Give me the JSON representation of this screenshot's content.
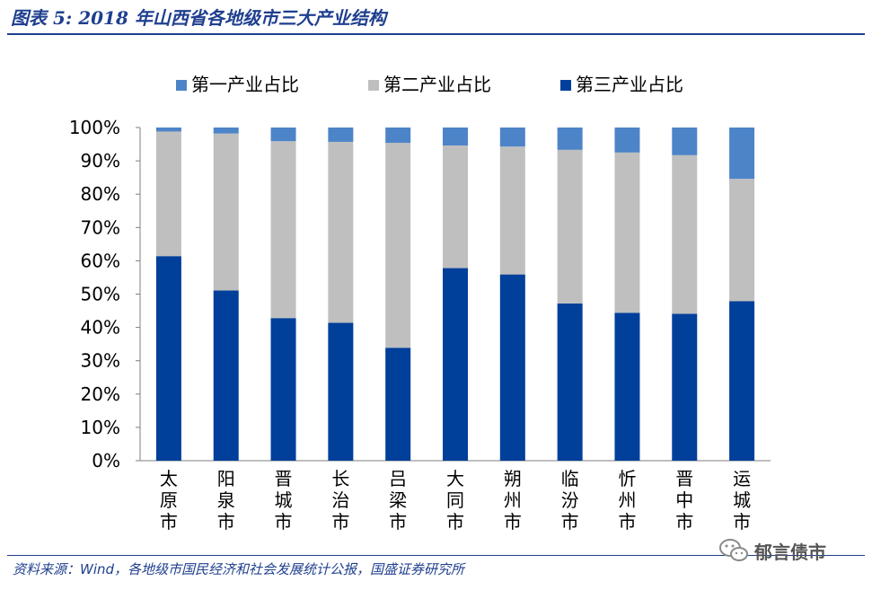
{
  "header": {
    "title": "图表 5: 2018 年山西省各地级市三大产业结构"
  },
  "footer": {
    "source": "资料来源：Wind，各地级市国民经济和社会发展统计公报，国盛证券研究所",
    "watermark": "郁言债市",
    "watermark_icon": "wechat-icon"
  },
  "colors": {
    "primary": "#4d84c8",
    "secondary": "#bfbfbf",
    "tertiary": "#003f9a",
    "title": "#1f3f8f",
    "axis": "#7f7f7f"
  },
  "chart_data": {
    "type": "bar",
    "stacked": true,
    "categories": [
      "太原市",
      "阳泉市",
      "晋城市",
      "长治市",
      "吕梁市",
      "大同市",
      "朔州市",
      "临汾市",
      "忻州市",
      "晋中市",
      "运城市"
    ],
    "series": [
      {
        "name": "第三产业占比",
        "color": "#003f9a",
        "values": [
          61.4,
          51.1,
          42.8,
          41.4,
          33.9,
          57.8,
          55.9,
          47.2,
          44.4,
          44.1,
          47.9
        ]
      },
      {
        "name": "第二产业占比",
        "color": "#bfbfbf",
        "values": [
          37.4,
          47.1,
          53.1,
          54.3,
          61.5,
          36.8,
          38.4,
          46.1,
          48.1,
          47.6,
          36.7
        ]
      },
      {
        "name": "第一产业占比",
        "color": "#4d84c8",
        "values": [
          1.2,
          1.8,
          4.1,
          4.3,
          4.6,
          5.4,
          5.7,
          6.7,
          7.5,
          8.3,
          15.4
        ]
      }
    ],
    "legend_order": [
      "第一产业占比",
      "第二产业占比",
      "第三产业占比"
    ],
    "legend_position": "top",
    "yticks": [
      "0%",
      "10%",
      "20%",
      "30%",
      "40%",
      "50%",
      "60%",
      "70%",
      "80%",
      "90%",
      "100%"
    ],
    "ylim": [
      0,
      100
    ],
    "grid": false
  }
}
